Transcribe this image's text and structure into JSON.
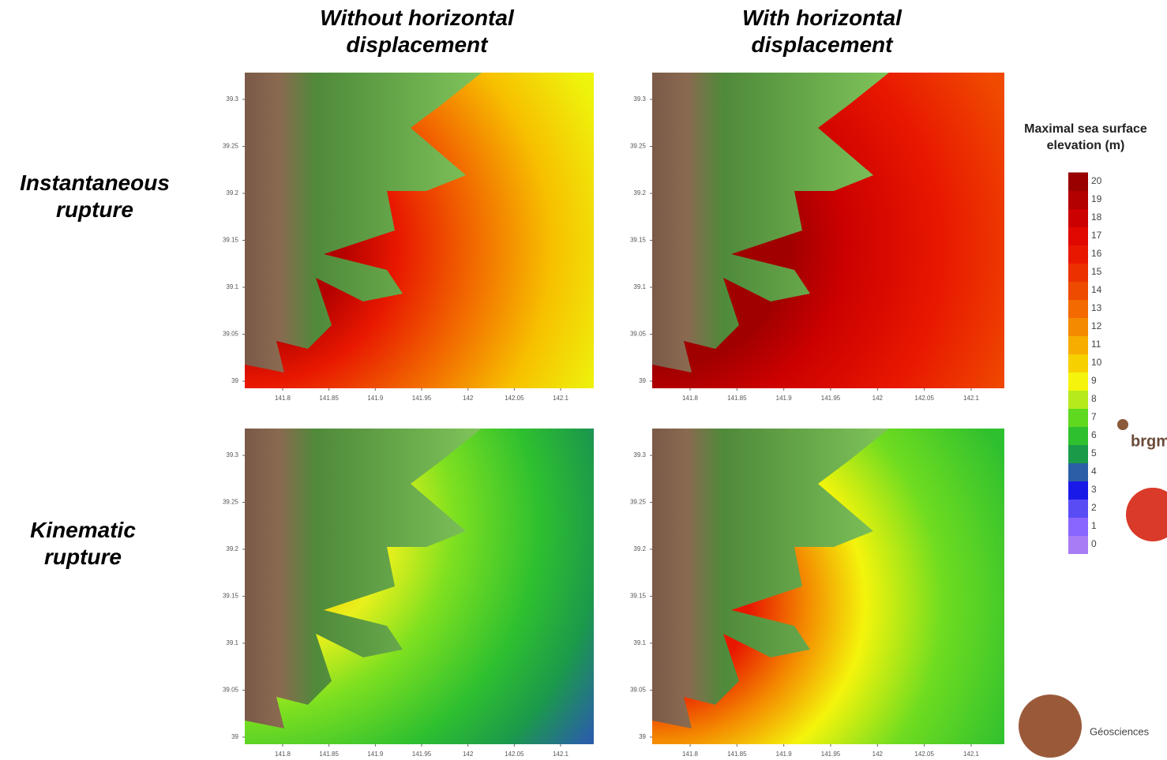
{
  "columns": [
    "Without horizontal displacement",
    "With horizontal displacement"
  ],
  "rows": [
    "Instantaneous rupture",
    "Kinematic rupture"
  ],
  "axes": {
    "yticks": [
      39.3,
      39.25,
      39.2,
      39.15,
      39.1,
      39.05,
      39
    ],
    "xticks": [
      141.8,
      141.85,
      141.9,
      141.95,
      142,
      142.05,
      142.1
    ]
  },
  "colorbar": {
    "title": "Maximal sea surface elevation (m)",
    "ticks": [
      0,
      1,
      2,
      3,
      4,
      5,
      6,
      7,
      8,
      9,
      10,
      11,
      12,
      13,
      14,
      15,
      16,
      17,
      18,
      19,
      20
    ],
    "colors": [
      "#a77cf5",
      "#8866ff",
      "#5a4cf5",
      "#1a1ae8",
      "#2a5fa8",
      "#1b9a4a",
      "#2fc02f",
      "#5fd820",
      "#b7ea1c",
      "#f4f40c",
      "#f7d000",
      "#f6ad00",
      "#f48a00",
      "#f26a00",
      "#ee4a00",
      "#ec3000",
      "#e81800",
      "#e00800",
      "#cc0000",
      "#b30000",
      "#990000"
    ]
  },
  "logos": [
    "brgm",
    "Géosciences"
  ]
}
